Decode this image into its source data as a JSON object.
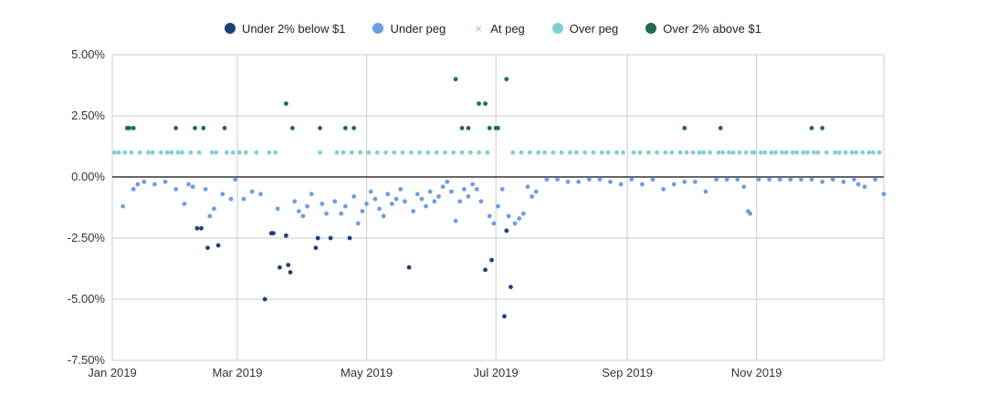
{
  "colors": {
    "under2": "#1f3f7a",
    "under": "#6f9de0",
    "at": "#9fc3ee",
    "over": "#7fd0d3",
    "over2": "#1f6b4d",
    "grid": "#cccccc",
    "zero": "#333333"
  },
  "legend": [
    {
      "key": "under2",
      "label": "Under 2% below $1",
      "marker": "dot"
    },
    {
      "key": "under",
      "label": "Under peg",
      "marker": "dot"
    },
    {
      "key": "at",
      "label": "At peg",
      "marker": "x"
    },
    {
      "key": "over",
      "label": "Over peg",
      "marker": "dot"
    },
    {
      "key": "over2",
      "label": "Over 2% above $1",
      "marker": "dot"
    }
  ],
  "chart_data": {
    "type": "scatter",
    "title": "",
    "xlabel": "",
    "ylabel": "",
    "x_unit": "days since Jan 1 2019",
    "xlim": [
      0,
      364
    ],
    "ylim": [
      -7.5,
      5.0
    ],
    "y_ticks": [
      "5.00%",
      "2.50%",
      "0.00%",
      "-2.50%",
      "-5.00%",
      "-7.50%"
    ],
    "y_tick_values": [
      5.0,
      2.5,
      0.0,
      -2.5,
      -5.0,
      -7.5
    ],
    "x_ticks": [
      "Jan 2019",
      "Mar 2019",
      "May 2019",
      "Jul 2019",
      "Sep 2019",
      "Nov 2019"
    ],
    "x_tick_values": [
      0,
      59,
      120,
      181,
      243,
      304
    ],
    "grid": true,
    "legend_position": "top",
    "series": [
      {
        "name": "Under 2% below $1",
        "color_key": "under2",
        "points": [
          [
            40,
            -2.1
          ],
          [
            42,
            -2.1
          ],
          [
            45,
            -2.9
          ],
          [
            50,
            -2.8
          ],
          [
            72,
            -5.0
          ],
          [
            75,
            -2.3
          ],
          [
            76,
            -2.3
          ],
          [
            79,
            -3.7
          ],
          [
            83,
            -3.6
          ],
          [
            84,
            -3.9
          ],
          [
            82,
            -2.4
          ],
          [
            96,
            -2.9
          ],
          [
            97,
            -2.5
          ],
          [
            103,
            -2.5
          ],
          [
            112,
            -2.5
          ],
          [
            176,
            -3.8
          ],
          [
            179,
            -3.4
          ],
          [
            185,
            -5.7
          ],
          [
            186,
            -2.2
          ],
          [
            188,
            -4.5
          ],
          [
            140,
            -3.7
          ]
        ]
      },
      {
        "name": "Under peg",
        "color_key": "under",
        "points": [
          [
            5,
            -1.2
          ],
          [
            10,
            -0.5
          ],
          [
            12,
            -0.3
          ],
          [
            15,
            -0.2
          ],
          [
            20,
            -0.3
          ],
          [
            25,
            -0.2
          ],
          [
            30,
            -0.5
          ],
          [
            34,
            -1.1
          ],
          [
            36,
            -0.3
          ],
          [
            38,
            -0.4
          ],
          [
            44,
            -0.5
          ],
          [
            46,
            -1.6
          ],
          [
            48,
            -1.3
          ],
          [
            52,
            -0.7
          ],
          [
            56,
            -0.9
          ],
          [
            58,
            -0.1
          ],
          [
            62,
            -0.9
          ],
          [
            66,
            -0.6
          ],
          [
            70,
            -0.7
          ],
          [
            78,
            -1.3
          ],
          [
            86,
            -1.0
          ],
          [
            88,
            -1.4
          ],
          [
            90,
            -1.6
          ],
          [
            92,
            -1.2
          ],
          [
            94,
            -0.7
          ],
          [
            99,
            -1.1
          ],
          [
            101,
            -1.5
          ],
          [
            105,
            -1.0
          ],
          [
            108,
            -1.5
          ],
          [
            110,
            -1.2
          ],
          [
            114,
            -0.8
          ],
          [
            116,
            -1.9
          ],
          [
            118,
            -1.4
          ],
          [
            120,
            -1.1
          ],
          [
            122,
            -0.6
          ],
          [
            124,
            -0.9
          ],
          [
            126,
            -1.3
          ],
          [
            128,
            -1.6
          ],
          [
            130,
            -0.7
          ],
          [
            132,
            -1.1
          ],
          [
            134,
            -0.9
          ],
          [
            136,
            -0.5
          ],
          [
            138,
            -1.0
          ],
          [
            142,
            -1.4
          ],
          [
            144,
            -0.7
          ],
          [
            146,
            -0.9
          ],
          [
            148,
            -1.2
          ],
          [
            150,
            -0.6
          ],
          [
            152,
            -1.0
          ],
          [
            154,
            -0.8
          ],
          [
            156,
            -0.4
          ],
          [
            158,
            -0.2
          ],
          [
            160,
            -0.6
          ],
          [
            162,
            -1.8
          ],
          [
            164,
            -1.0
          ],
          [
            166,
            -0.5
          ],
          [
            168,
            -0.8
          ],
          [
            170,
            -0.3
          ],
          [
            172,
            -0.5
          ],
          [
            174,
            -1.0
          ],
          [
            178,
            -1.6
          ],
          [
            180,
            -1.9
          ],
          [
            182,
            -1.2
          ],
          [
            184,
            -0.5
          ],
          [
            187,
            -1.6
          ],
          [
            190,
            -1.9
          ],
          [
            192,
            -1.7
          ],
          [
            194,
            -1.5
          ],
          [
            196,
            -0.4
          ],
          [
            198,
            -0.8
          ],
          [
            200,
            -0.6
          ],
          [
            205,
            -0.1
          ],
          [
            210,
            -0.1
          ],
          [
            215,
            -0.2
          ],
          [
            220,
            -0.2
          ],
          [
            225,
            -0.1
          ],
          [
            230,
            -0.1
          ],
          [
            235,
            -0.2
          ],
          [
            240,
            -0.3
          ],
          [
            245,
            -0.1
          ],
          [
            250,
            -0.3
          ],
          [
            255,
            -0.1
          ],
          [
            260,
            -0.5
          ],
          [
            265,
            -0.3
          ],
          [
            270,
            -0.2
          ],
          [
            275,
            -0.2
          ],
          [
            280,
            -0.6
          ],
          [
            285,
            -0.1
          ],
          [
            290,
            -0.1
          ],
          [
            295,
            -0.1
          ],
          [
            298,
            -0.4
          ],
          [
            300,
            -1.4
          ],
          [
            301,
            -1.5
          ],
          [
            305,
            -0.1
          ],
          [
            310,
            -0.1
          ],
          [
            315,
            -0.1
          ],
          [
            320,
            -0.1
          ],
          [
            325,
            -0.1
          ],
          [
            330,
            -0.1
          ],
          [
            335,
            -0.2
          ],
          [
            340,
            -0.1
          ],
          [
            345,
            -0.2
          ],
          [
            350,
            -0.1
          ],
          [
            352,
            -0.3
          ],
          [
            355,
            -0.4
          ],
          [
            360,
            -0.1
          ],
          [
            364,
            -0.7
          ]
        ]
      },
      {
        "name": "At peg",
        "color_key": "at",
        "points": []
      },
      {
        "name": "Over peg",
        "color_key": "over",
        "points": [
          [
            1,
            1.0
          ],
          [
            3,
            1.0
          ],
          [
            6,
            1.0
          ],
          [
            9,
            1.0
          ],
          [
            13,
            1.0
          ],
          [
            17,
            1.0
          ],
          [
            19,
            1.0
          ],
          [
            23,
            1.0
          ],
          [
            26,
            1.0
          ],
          [
            28,
            1.0
          ],
          [
            31,
            1.0
          ],
          [
            33,
            1.0
          ],
          [
            37,
            1.0
          ],
          [
            41,
            1.0
          ],
          [
            47,
            1.0
          ],
          [
            49,
            1.0
          ],
          [
            54,
            1.0
          ],
          [
            57,
            1.0
          ],
          [
            60,
            1.0
          ],
          [
            63,
            1.0
          ],
          [
            68,
            1.0
          ],
          [
            74,
            1.0
          ],
          [
            77,
            1.0
          ],
          [
            98,
            1.0
          ],
          [
            106,
            1.0
          ],
          [
            109,
            1.0
          ],
          [
            113,
            1.0
          ],
          [
            117,
            1.0
          ],
          [
            121,
            1.0
          ],
          [
            125,
            1.0
          ],
          [
            129,
            1.0
          ],
          [
            133,
            1.0
          ],
          [
            137,
            1.0
          ],
          [
            141,
            1.0
          ],
          [
            145,
            1.0
          ],
          [
            149,
            1.0
          ],
          [
            153,
            1.0
          ],
          [
            157,
            1.0
          ],
          [
            161,
            1.0
          ],
          [
            165,
            1.0
          ],
          [
            169,
            1.0
          ],
          [
            173,
            1.0
          ],
          [
            177,
            1.0
          ],
          [
            189,
            1.0
          ],
          [
            193,
            1.0
          ],
          [
            197,
            1.0
          ],
          [
            201,
            1.0
          ],
          [
            204,
            1.0
          ],
          [
            208,
            1.0
          ],
          [
            212,
            1.0
          ],
          [
            216,
            1.0
          ],
          [
            219,
            1.0
          ],
          [
            223,
            1.0
          ],
          [
            227,
            1.0
          ],
          [
            231,
            1.0
          ],
          [
            234,
            1.0
          ],
          [
            238,
            1.0
          ],
          [
            241,
            1.0
          ],
          [
            246,
            1.0
          ],
          [
            249,
            1.0
          ],
          [
            253,
            1.0
          ],
          [
            257,
            1.0
          ],
          [
            261,
            1.0
          ],
          [
            264,
            1.0
          ],
          [
            268,
            1.0
          ],
          [
            271,
            1.0
          ],
          [
            274,
            1.0
          ],
          [
            277,
            1.0
          ],
          [
            279,
            1.0
          ],
          [
            282,
            1.0
          ],
          [
            286,
            1.0
          ],
          [
            288,
            1.0
          ],
          [
            291,
            1.0
          ],
          [
            293,
            1.0
          ],
          [
            296,
            1.0
          ],
          [
            299,
            1.0
          ],
          [
            302,
            1.0
          ],
          [
            303,
            1.0
          ],
          [
            306,
            1.0
          ],
          [
            308,
            1.0
          ],
          [
            311,
            1.0
          ],
          [
            313,
            1.0
          ],
          [
            316,
            1.0
          ],
          [
            318,
            1.0
          ],
          [
            321,
            1.0
          ],
          [
            323,
            1.0
          ],
          [
            326,
            1.0
          ],
          [
            328,
            1.0
          ],
          [
            331,
            1.0
          ],
          [
            333,
            1.0
          ],
          [
            337,
            1.0
          ],
          [
            341,
            1.0
          ],
          [
            343,
            1.0
          ],
          [
            346,
            1.0
          ],
          [
            349,
            1.0
          ],
          [
            351,
            1.0
          ],
          [
            354,
            1.0
          ],
          [
            357,
            1.0
          ],
          [
            359,
            1.0
          ],
          [
            362,
            1.0
          ]
        ]
      },
      {
        "name": "Over 2% above $1",
        "color_key": "over2",
        "points": [
          [
            7,
            2.0
          ],
          [
            8,
            2.0
          ],
          [
            10,
            2.0
          ],
          [
            30,
            2.0
          ],
          [
            39,
            2.0
          ],
          [
            43,
            2.0
          ],
          [
            53,
            2.0
          ],
          [
            82,
            3.0
          ],
          [
            85,
            2.0
          ],
          [
            98,
            2.0
          ],
          [
            110,
            2.0
          ],
          [
            114,
            2.0
          ],
          [
            162,
            4.0
          ],
          [
            165,
            2.0
          ],
          [
            168,
            2.0
          ],
          [
            173,
            3.0
          ],
          [
            176,
            3.0
          ],
          [
            178,
            2.0
          ],
          [
            181,
            2.0
          ],
          [
            182,
            2.0
          ],
          [
            186,
            4.0
          ],
          [
            270,
            2.0
          ],
          [
            287,
            2.0
          ],
          [
            330,
            2.0
          ],
          [
            335,
            2.0
          ]
        ]
      }
    ]
  }
}
